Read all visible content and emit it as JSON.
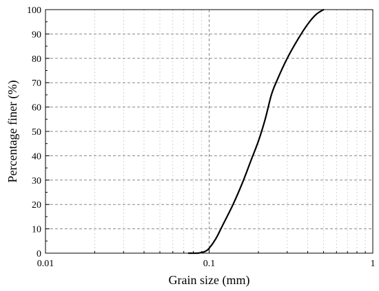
{
  "chart_data": {
    "type": "line",
    "title": "",
    "xlabel": "Grain size (mm)",
    "ylabel": "Percentage finer (%)",
    "x_scale": "log",
    "xlim": [
      0.01,
      1
    ],
    "ylim": [
      0,
      100
    ],
    "x_ticks": [
      0.01,
      0.1,
      1
    ],
    "x_tick_labels": [
      "0.01",
      "0.1",
      "1"
    ],
    "y_ticks": [
      0,
      10,
      20,
      30,
      40,
      50,
      60,
      70,
      80,
      90,
      100
    ],
    "y_tick_labels": [
      "0",
      "10",
      "20",
      "30",
      "40",
      "50",
      "60",
      "70",
      "80",
      "90",
      "100"
    ],
    "grid": true,
    "line_color": "#000000",
    "series": [
      {
        "x": [
          0.075,
          0.085,
          0.09,
          0.095,
          0.1,
          0.11,
          0.12,
          0.14,
          0.16,
          0.18,
          0.2,
          0.22,
          0.24,
          0.26,
          0.3,
          0.35,
          0.4,
          0.45,
          0.5
        ],
        "y": [
          0,
          0,
          0.3,
          0.8,
          2,
          6,
          11,
          20,
          29,
          38,
          46,
          55,
          65,
          71,
          80,
          88,
          94,
          98,
          100
        ]
      }
    ]
  }
}
